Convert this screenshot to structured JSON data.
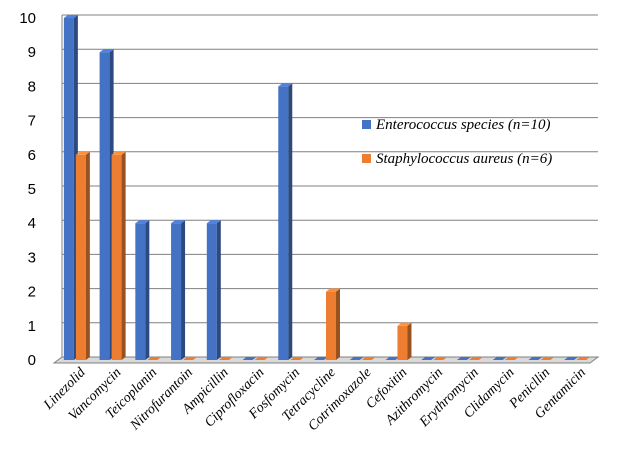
{
  "chart_data": {
    "type": "bar",
    "style": "3d-column",
    "categories": [
      "Linezolid",
      "Vancomycin",
      "Teicoplanin",
      "Nitrofurantoin",
      "Ampicillin",
      "Ciprofloxacin",
      "Fosfomycin",
      "Tetracycline",
      "Cotrimoxazole",
      "Cefoxitin",
      "Azithromycin",
      "Erythromycin",
      "Clidamycin",
      "Penicllin",
      "Gentamicin"
    ],
    "series": [
      {
        "name": "Enterococcus species (n=10)",
        "color": "#4472C4",
        "values": [
          10,
          9,
          4,
          4,
          4,
          0,
          8,
          0,
          0,
          0,
          0,
          0,
          0,
          0,
          0
        ]
      },
      {
        "name": "Staphylococcus aureus (n=6)",
        "color": "#ED7D31",
        "values": [
          6,
          6,
          0,
          0,
          0,
          0,
          0,
          2,
          0,
          1,
          0,
          0,
          0,
          0,
          0
        ]
      }
    ],
    "yticks": [
      "0",
      "1",
      "2",
      "3",
      "4",
      "5",
      "6",
      "7",
      "8",
      "9",
      "10"
    ],
    "ylim": [
      0,
      10
    ],
    "grid": true,
    "legend_position": "right"
  }
}
